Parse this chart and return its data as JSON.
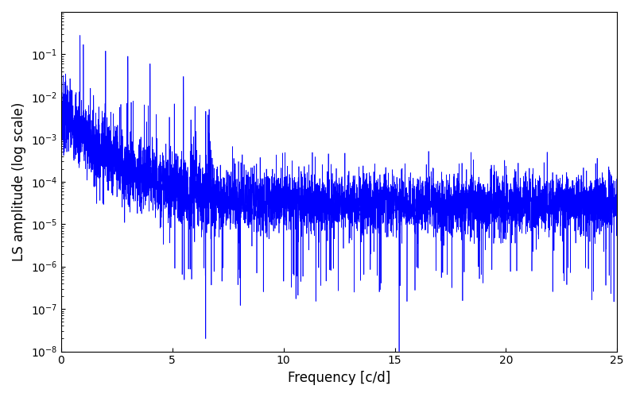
{
  "xlabel": "Frequency [c/d]",
  "ylabel": "LS amplitude (log scale)",
  "xlim": [
    0,
    25
  ],
  "ylim": [
    1e-08,
    1.0
  ],
  "line_color": "#0000ff",
  "line_width": 0.5,
  "background_color": "#ffffff",
  "figsize": [
    8.0,
    5.0
  ],
  "dpi": 100,
  "num_points": 6000,
  "freq_max": 25.0,
  "seed": 7,
  "noise_floor": 1e-08,
  "yticks": [
    1e-08,
    1e-07,
    1e-06,
    1e-05,
    0.0001,
    0.001,
    0.01,
    0.1
  ]
}
